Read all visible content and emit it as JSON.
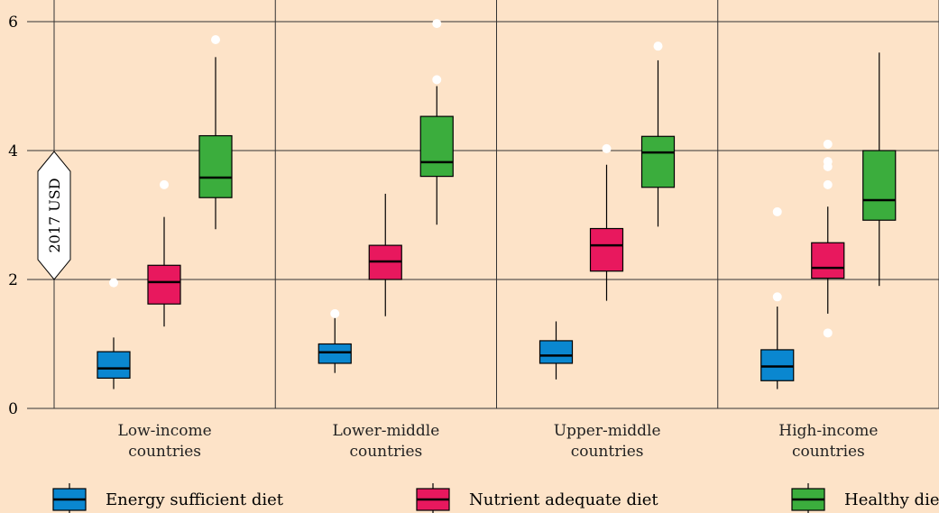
{
  "chart_data": {
    "type": "box",
    "y_unit_label": "2017 USD",
    "ylim": [
      0,
      6
    ],
    "y_ticks": [
      "0",
      "2",
      "4",
      "6"
    ],
    "grid": true,
    "legend_placement": "bottom",
    "categories": [
      [
        "Low-income",
        "countries"
      ],
      [
        "Lower-middle",
        "countries"
      ],
      [
        "Upper-middle",
        "countries"
      ],
      [
        "High-income",
        "countries"
      ]
    ],
    "series": [
      {
        "name": "Energy sufficient diet",
        "color": "#0a87d0",
        "boxes": [
          {
            "whisker_low": 0.3,
            "q1": 0.47,
            "median": 0.62,
            "q3": 0.88,
            "whisker_high": 1.1,
            "outliers": [
              1.95
            ]
          },
          {
            "whisker_low": 0.55,
            "q1": 0.7,
            "median": 0.87,
            "q3": 1.0,
            "whisker_high": 1.45,
            "outliers": [
              1.47
            ]
          },
          {
            "whisker_low": 0.45,
            "q1": 0.7,
            "median": 0.82,
            "q3": 1.05,
            "whisker_high": 1.35,
            "outliers": []
          },
          {
            "whisker_low": 0.3,
            "q1": 0.43,
            "median": 0.65,
            "q3": 0.91,
            "whisker_high": 1.58,
            "outliers": [
              1.73,
              3.05
            ]
          }
        ]
      },
      {
        "name": "Nutrient adequate diet",
        "color": "#e8185e",
        "boxes": [
          {
            "whisker_low": 1.27,
            "q1": 1.62,
            "median": 1.96,
            "q3": 2.22,
            "whisker_high": 2.97,
            "outliers": [
              3.47
            ]
          },
          {
            "whisker_low": 1.43,
            "q1": 2.0,
            "median": 2.28,
            "q3": 2.53,
            "whisker_high": 3.33,
            "outliers": []
          },
          {
            "whisker_low": 1.67,
            "q1": 2.13,
            "median": 2.53,
            "q3": 2.79,
            "whisker_high": 3.78,
            "outliers": [
              4.03
            ]
          },
          {
            "whisker_low": 1.47,
            "q1": 2.02,
            "median": 2.18,
            "q3": 2.57,
            "whisker_high": 3.13,
            "outliers": [
              1.17,
              3.47,
              3.75,
              3.83,
              4.1
            ]
          }
        ]
      },
      {
        "name": "Healthy diet",
        "color": "#3bad3d",
        "boxes": [
          {
            "whisker_low": 2.78,
            "q1": 3.27,
            "median": 3.58,
            "q3": 4.23,
            "whisker_high": 5.45,
            "outliers": [
              5.72
            ]
          },
          {
            "whisker_low": 2.85,
            "q1": 3.6,
            "median": 3.82,
            "q3": 4.53,
            "whisker_high": 5.0,
            "outliers": [
              5.1,
              5.97
            ]
          },
          {
            "whisker_low": 2.82,
            "q1": 3.43,
            "median": 3.97,
            "q3": 4.22,
            "whisker_high": 5.4,
            "outliers": [
              5.62
            ]
          },
          {
            "whisker_low": 1.9,
            "q1": 2.92,
            "median": 3.23,
            "q3": 4.0,
            "whisker_high": 5.52,
            "outliers": []
          }
        ]
      }
    ]
  }
}
